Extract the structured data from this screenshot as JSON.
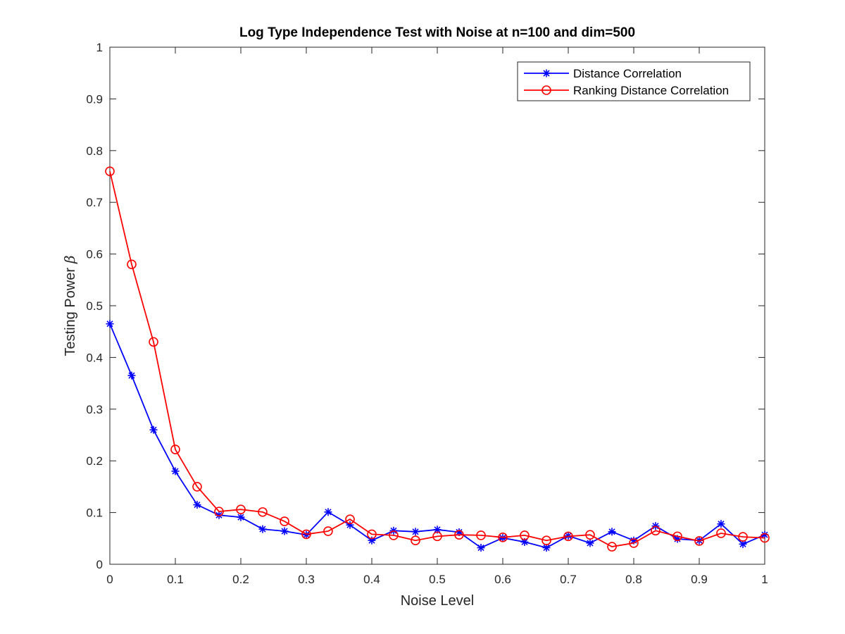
{
  "chart_data": {
    "type": "line",
    "title": "Log Type Independence Test with Noise at n=100 and dim=500",
    "xlabel": "Noise Level",
    "ylabel_text": "Testing Power",
    "ylabel_symbol": "β",
    "xlim": [
      0,
      1
    ],
    "ylim": [
      0,
      1
    ],
    "xticks": [
      "0",
      "0.1",
      "0.2",
      "0.3",
      "0.4",
      "0.5",
      "0.6",
      "0.7",
      "0.8",
      "0.9",
      "1"
    ],
    "yticks": [
      "0",
      "0.1",
      "0.2",
      "0.3",
      "0.4",
      "0.5",
      "0.6",
      "0.7",
      "0.8",
      "0.9",
      "1"
    ],
    "grid": false,
    "legend_position": "top-right",
    "x": [
      0.0,
      0.0333,
      0.0667,
      0.1,
      0.1333,
      0.1667,
      0.2,
      0.2333,
      0.2667,
      0.3,
      0.3333,
      0.3667,
      0.4,
      0.4333,
      0.4667,
      0.5,
      0.5333,
      0.5667,
      0.6,
      0.6333,
      0.6667,
      0.7,
      0.7333,
      0.7667,
      0.8,
      0.8333,
      0.8667,
      0.9,
      0.9333,
      0.9667,
      1.0
    ],
    "series": [
      {
        "name": "Distance Correlation",
        "color": "#0000ff",
        "marker": "asterisk",
        "values": [
          0.465,
          0.365,
          0.26,
          0.18,
          0.115,
          0.095,
          0.091,
          0.068,
          0.064,
          0.057,
          0.101,
          0.076,
          0.046,
          0.065,
          0.063,
          0.067,
          0.062,
          0.032,
          0.051,
          0.043,
          0.032,
          0.055,
          0.041,
          0.063,
          0.046,
          0.074,
          0.049,
          0.046,
          0.078,
          0.039,
          0.057
        ]
      },
      {
        "name": "Ranking Distance Correlation",
        "color": "#ff0000",
        "marker": "circle",
        "values": [
          0.76,
          0.58,
          0.43,
          0.222,
          0.15,
          0.102,
          0.106,
          0.101,
          0.083,
          0.058,
          0.064,
          0.087,
          0.058,
          0.056,
          0.046,
          0.054,
          0.057,
          0.056,
          0.052,
          0.056,
          0.046,
          0.054,
          0.057,
          0.034,
          0.041,
          0.065,
          0.054,
          0.045,
          0.06,
          0.053,
          0.051
        ]
      }
    ]
  }
}
